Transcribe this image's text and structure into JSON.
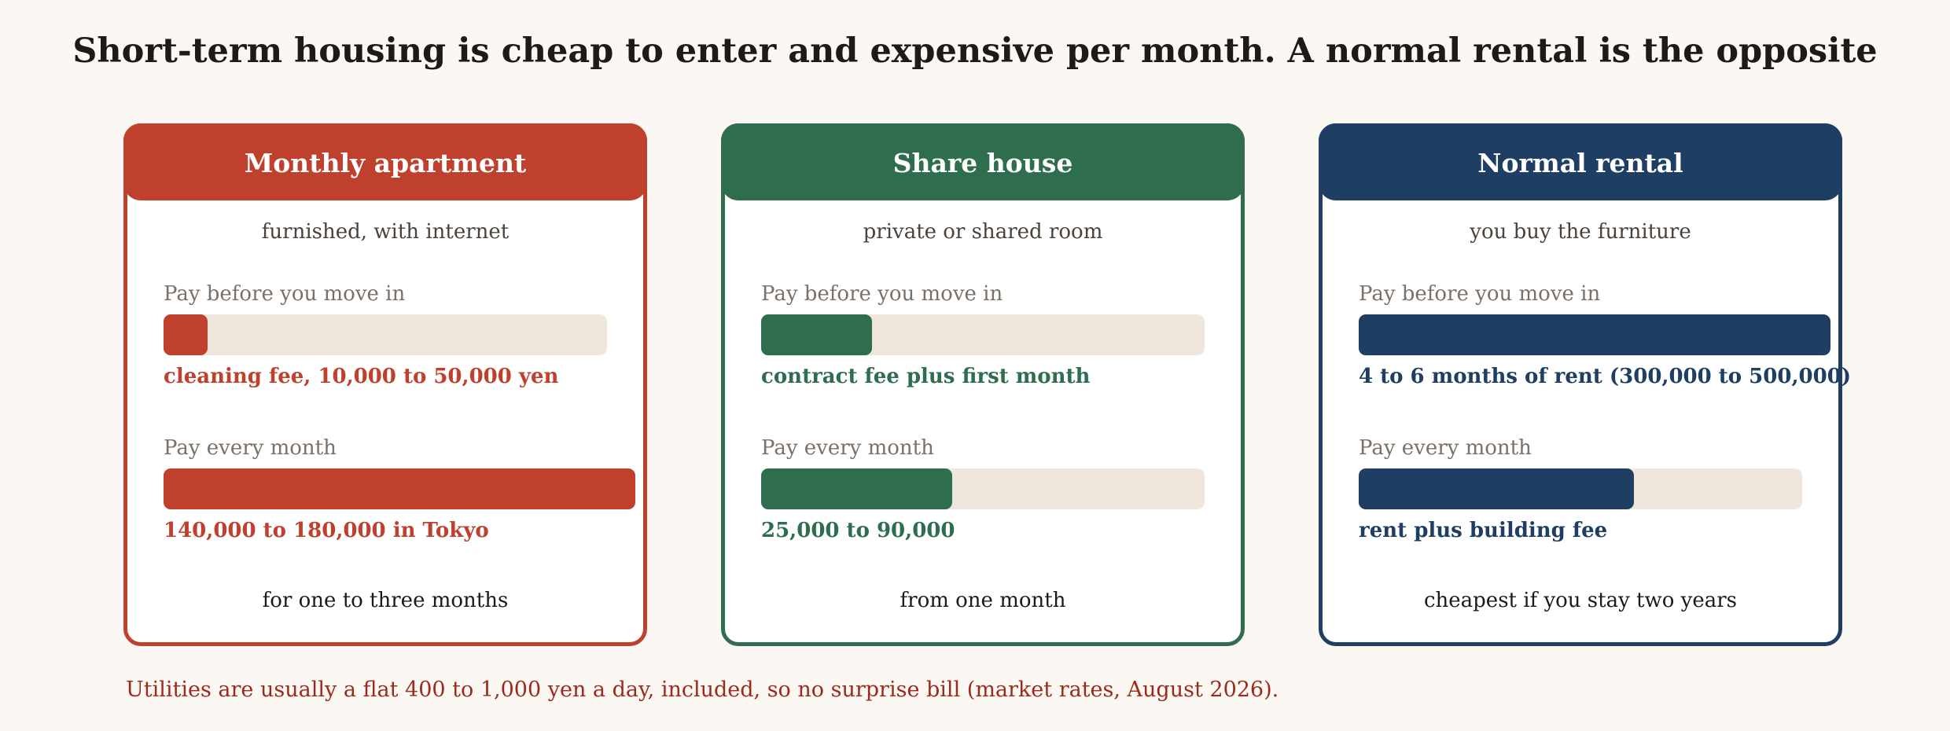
{
  "title": "Short-term housing is cheap to enter and expensive per month. A normal rental is the opposite",
  "cards": [
    {
      "name": "Monthly apartment",
      "subtitle": "furnished, with internet",
      "color": "#c0402e",
      "upfront_label": "Pay before you move in",
      "upfront_fraction": 0.1,
      "upfront_text": "cleaning fee, 10,000 to 50,000 yen",
      "monthly_label": "Pay every month",
      "monthly_fraction": 1.0,
      "monthly_text": "140,000 to 180,000 in Tokyo",
      "footer": "for one to three months"
    },
    {
      "name": "Share house",
      "subtitle": "private or shared room",
      "color": "#2e6e4f",
      "upfront_label": "Pay before you move in",
      "upfront_fraction": 0.25,
      "upfront_text": "contract fee plus first month",
      "monthly_label": "Pay every month",
      "monthly_fraction": 0.43,
      "monthly_text": "25,000 to 90,000",
      "footer": "from one month"
    },
    {
      "name": "Normal rental",
      "subtitle": "you buy the furniture",
      "color": "#1e3f63",
      "upfront_label": "Pay before you move in",
      "upfront_fraction": 1.0,
      "upfront_text": "4 to 6 months of rent (300,000 to 500,000)",
      "monthly_label": "Pay every month",
      "monthly_fraction": 0.62,
      "monthly_text": "rent plus building fee",
      "footer": "cheapest if you stay two years"
    }
  ],
  "note": "Utilities are usually a flat 400 to 1,000 yen a day, included, so no surprise bill (market rates, August 2026)."
}
